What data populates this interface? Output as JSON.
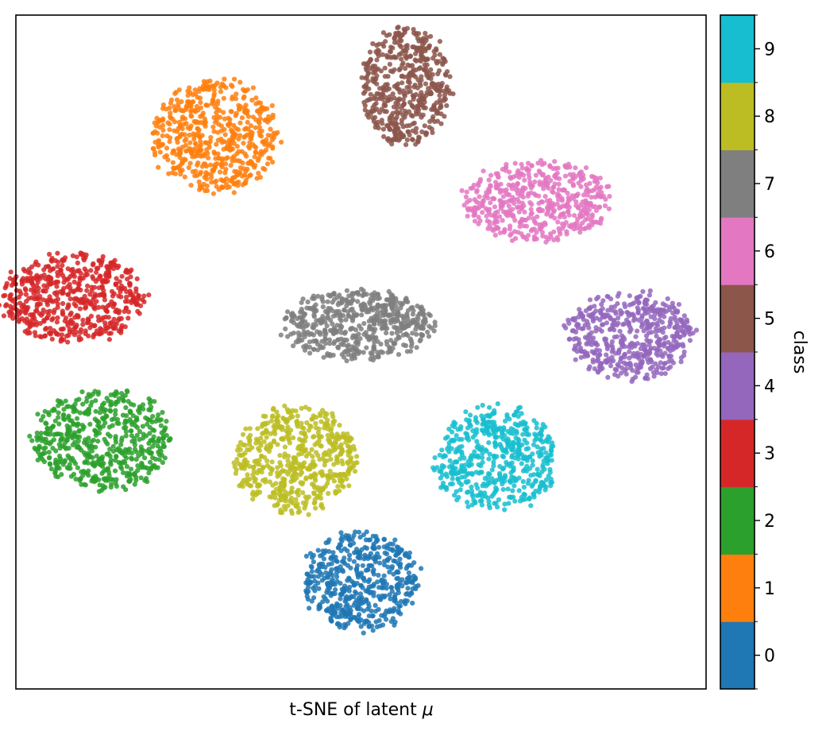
{
  "chart_data": {
    "type": "scatter",
    "title": "",
    "xlabel": "t-SNE of latent μ",
    "xlabel_prefix": "t-SNE of latent ",
    "xlabel_symbol": "μ",
    "ylabel": "",
    "axis_ticks": "none",
    "grid": false,
    "colorbar": {
      "label": "class",
      "ticks": [
        "0",
        "1",
        "2",
        "3",
        "4",
        "5",
        "6",
        "7",
        "8",
        "9"
      ],
      "colors": [
        "#1f77b4",
        "#ff7f0e",
        "#2ca02c",
        "#d62728",
        "#9467bd",
        "#8c564b",
        "#e377c2",
        "#7f7f7f",
        "#bcbd22",
        "#17becf"
      ]
    },
    "clusters": [
      {
        "class": "0",
        "center": [
          0.0,
          -0.68
        ],
        "spread": [
          0.18,
          0.16
        ],
        "count": 520
      },
      {
        "class": "1",
        "center": [
          -0.42,
          0.64
        ],
        "spread": [
          0.2,
          0.18
        ],
        "count": 560
      },
      {
        "class": "2",
        "center": [
          -0.75,
          -0.26
        ],
        "spread": [
          0.22,
          0.16
        ],
        "count": 560
      },
      {
        "class": "3",
        "center": [
          -0.83,
          0.16
        ],
        "spread": [
          0.23,
          0.14
        ],
        "count": 560
      },
      {
        "class": "4",
        "center": [
          0.78,
          0.05
        ],
        "spread": [
          0.2,
          0.14
        ],
        "count": 520
      },
      {
        "class": "5",
        "center": [
          0.13,
          0.79
        ],
        "spread": [
          0.14,
          0.19
        ],
        "count": 500
      },
      {
        "class": "6",
        "center": [
          0.51,
          0.45
        ],
        "spread": [
          0.23,
          0.13
        ],
        "count": 500
      },
      {
        "class": "7",
        "center": [
          -0.01,
          0.08
        ],
        "spread": [
          0.24,
          0.11
        ],
        "count": 560
      },
      {
        "class": "8",
        "center": [
          -0.19,
          -0.32
        ],
        "spread": [
          0.19,
          0.17
        ],
        "count": 560
      },
      {
        "class": "9",
        "center": [
          0.39,
          -0.32
        ],
        "spread": [
          0.19,
          0.17
        ],
        "count": 520
      }
    ]
  }
}
